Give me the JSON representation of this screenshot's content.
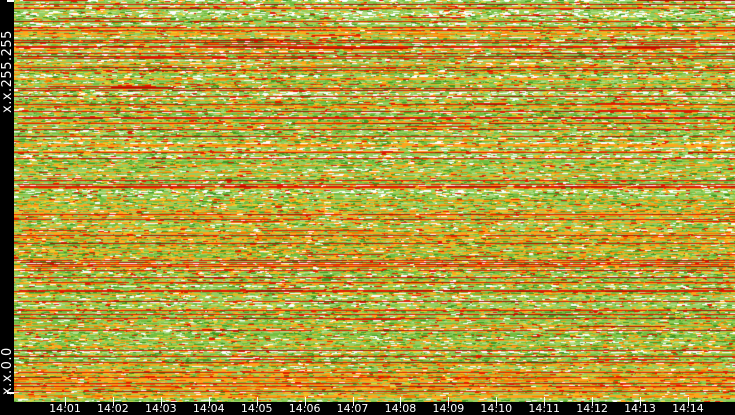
{
  "chart_data": {
    "type": "heatmap",
    "title": "",
    "description": "Dense network-traffic raster plot: x axis is time of day (14:01-14:14), y axis is IP address space from x.x.0.0 (bottom) to x.x.255.255 (top). Green noise background with horizontal red and orange streaks, white speckle clusters, an orange-heavy band near the bottom and an orange-tinted band in the middle.",
    "x_axis": {
      "label": "",
      "ticks": [
        "14:01",
        "14:02",
        "14:03",
        "14:04",
        "14:05",
        "14:06",
        "14:07",
        "14:08",
        "14:09",
        "14:10",
        "14:11",
        "14:12",
        "14:13",
        "14:14"
      ],
      "first_tick_x": 65,
      "tick_spacing": 47.92
    },
    "y_axis": {
      "top_label": "x.x.255.255",
      "bottom_label": "x.x.0.0"
    },
    "axes_style": {
      "bar_color": "#000000",
      "text_color": "#ffffff"
    },
    "palette": {
      "light": "#94CE61",
      "mid": "#72BD3F",
      "pale": "#B6E08F",
      "olive": "#BFCC39",
      "yellow": "#E8D531",
      "dark": "#3F9522",
      "white": "#FFFFFF",
      "orange": "#FFA41C",
      "dorange": "#EE7D00",
      "rorange": "#F04A00",
      "red": "#DD1A00",
      "dred": "#A81000"
    },
    "texture": {
      "seed": 1337,
      "rows": 402,
      "cols": 721,
      "red_rows": [
        4,
        21,
        27,
        30,
        40,
        42,
        47,
        53,
        58,
        67,
        70,
        88,
        90,
        96,
        104,
        111,
        117,
        123,
        129,
        136,
        152,
        158,
        180,
        186,
        219,
        235,
        262,
        270,
        277,
        282,
        290,
        291,
        301,
        310,
        318,
        330,
        350,
        356,
        362,
        372,
        377,
        383,
        386,
        391
      ],
      "orange_rows": [
        7,
        33,
        34,
        50,
        62,
        65,
        72,
        78,
        79,
        84,
        100,
        140,
        146,
        165,
        172,
        200,
        205,
        210,
        215,
        222,
        228,
        232,
        240,
        246,
        252,
        258,
        265,
        268,
        283,
        325,
        340,
        346,
        365,
        369,
        375
      ],
      "white_rows": [
        0,
        1,
        12,
        13,
        14,
        15,
        44,
        75,
        76,
        92,
        93,
        94,
        142,
        143,
        148,
        155,
        190,
        191,
        195,
        285,
        286,
        296,
        305
      ],
      "mid_band": {
        "from": 198,
        "to": 277
      },
      "mid_band_orange_boost": 8,
      "bottom_band": {
        "from": 378,
        "to": 397
      },
      "weights": {
        "light": {
          "light": 42,
          "mid": 16,
          "pale": 9,
          "olive": 6,
          "dark": 6,
          "white": 5,
          "yellow": 4,
          "orange": 7,
          "dorange": 2,
          "red": 3
        },
        "mid": {
          "mid": 40,
          "light": 14,
          "dark": 12,
          "olive": 7,
          "pale": 4,
          "orange": 8,
          "yellow": 5,
          "red": 4,
          "white": 3,
          "dorange": 3
        },
        "speck": {
          "light": 27,
          "white": 24,
          "pale": 12,
          "mid": 10,
          "dark": 5,
          "orange": 8,
          "yellow": 5,
          "red": 4,
          "olive": 5
        },
        "orange": {
          "orange": 34,
          "dorange": 14,
          "yellow": 9,
          "rorange": 9,
          "red": 8,
          "light": 9,
          "mid": 7,
          "olive": 6,
          "white": 2,
          "dark": 2
        },
        "red": {
          "red": 44,
          "dred": 10,
          "rorange": 12,
          "orange": 11,
          "light": 7,
          "mid": 5,
          "white": 4,
          "dark": 4,
          "yellow": 3
        }
      },
      "random_row_probs": {
        "red": 0.05,
        "orange": 0.1,
        "speck": 0.1
      },
      "overlay": {
        "red_dash_prob": 0.1,
        "white_dash_prob": 0.09
      }
    }
  }
}
